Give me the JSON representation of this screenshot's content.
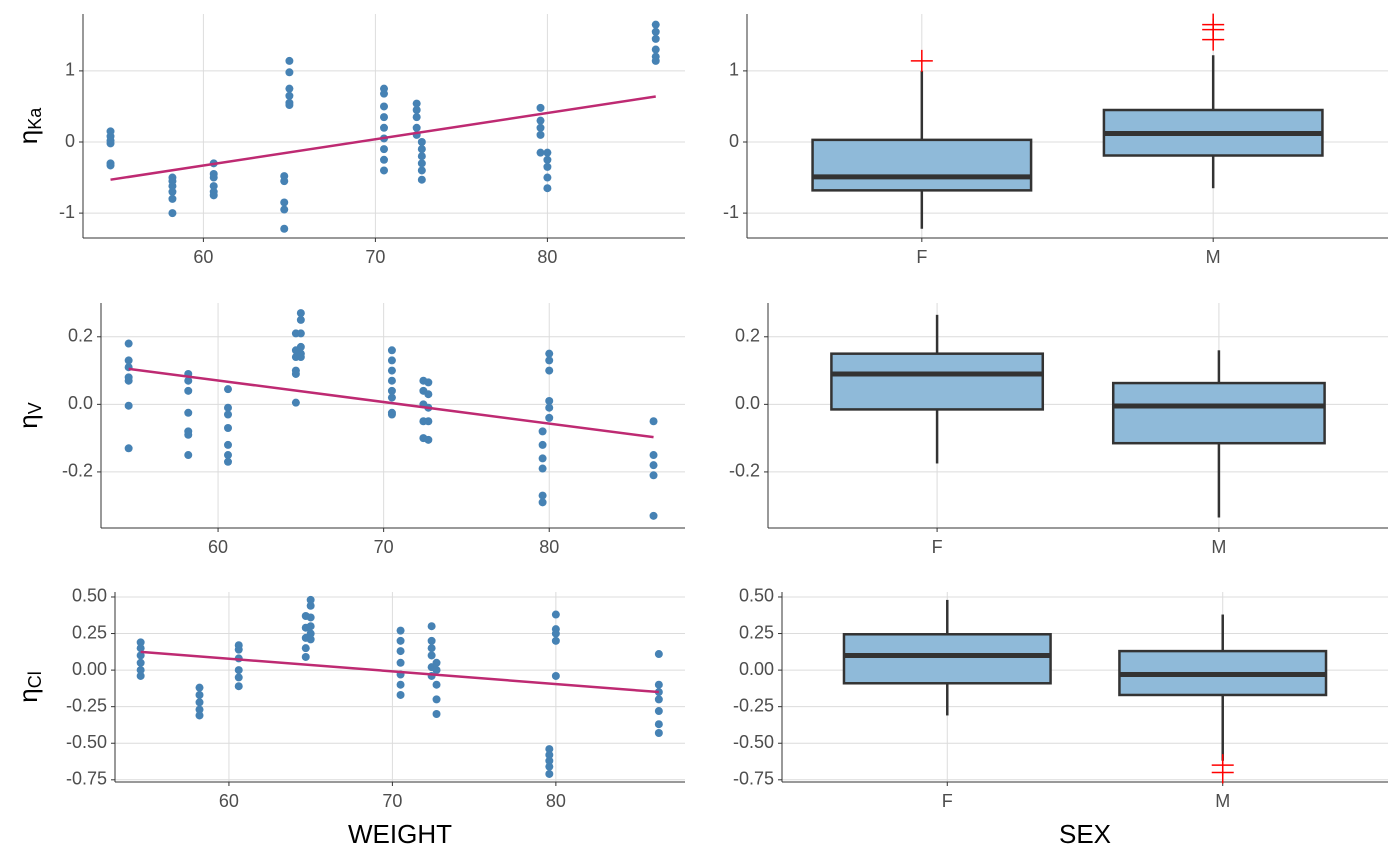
{
  "chart_data": [
    {
      "type": "scatter",
      "ylabel": "η",
      "ylabel_sub": "Ka",
      "color": "#4682b4",
      "xlim": [
        53.0,
        88.0
      ],
      "xticks": [
        60,
        70,
        80
      ],
      "ylim": [
        -1.35,
        1.8
      ],
      "yticks": [
        -1,
        0,
        1
      ],
      "grid": true,
      "groups": [
        {
          "x": 54.6,
          "values": [
            0.15,
            0.08,
            0.02,
            -0.02,
            -0.3,
            -0.33
          ]
        },
        {
          "x": 58.2,
          "values": [
            -0.5,
            -0.55,
            -0.62,
            -0.7,
            -0.8,
            -1.0
          ]
        },
        {
          "x": 60.6,
          "values": [
            -0.3,
            -0.45,
            -0.5,
            -0.62,
            -0.7,
            -0.75
          ]
        },
        {
          "x": 64.7,
          "values": [
            -0.48,
            -0.55,
            -0.85,
            -0.95,
            -1.22
          ]
        },
        {
          "x": 65.0,
          "values": [
            1.14,
            0.98,
            0.75,
            0.65,
            0.55,
            0.52
          ]
        },
        {
          "x": 70.5,
          "values": [
            0.75,
            0.68,
            0.5,
            0.35,
            0.2,
            0.05,
            -0.1,
            -0.25,
            -0.4
          ]
        },
        {
          "x": 72.4,
          "values": [
            0.54,
            0.45,
            0.35,
            0.2,
            0.1
          ]
        },
        {
          "x": 72.7,
          "values": [
            0.0,
            -0.1,
            -0.2,
            -0.3,
            -0.4,
            -0.53
          ]
        },
        {
          "x": 79.6,
          "values": [
            0.48,
            0.3,
            0.2,
            0.1,
            -0.15
          ]
        },
        {
          "x": 80.0,
          "values": [
            -0.15,
            -0.25,
            -0.35,
            -0.5,
            -0.65
          ]
        },
        {
          "x": 86.3,
          "values": [
            1.65,
            1.55,
            1.45,
            1.3,
            1.2,
            1.14
          ]
        }
      ],
      "fit": {
        "x": [
          54.6,
          86.3
        ],
        "values": [
          -0.53,
          0.64
        ],
        "color": "#be2a72"
      }
    },
    {
      "type": "box",
      "color": "#8fbad9",
      "outlier_color": "#ff0000",
      "categories": [
        "F",
        "M"
      ],
      "ylim": [
        -1.35,
        1.8
      ],
      "yticks": [
        -1,
        0,
        1
      ],
      "grid": true,
      "boxes": [
        {
          "low": -1.22,
          "q1": -0.68,
          "median": -0.49,
          "q3": 0.03,
          "high": 1.0,
          "outliers": [
            1.14
          ]
        },
        {
          "low": -0.65,
          "q1": -0.19,
          "median": 0.12,
          "q3": 0.45,
          "high": 1.22,
          "outliers": [
            1.65,
            1.58,
            1.44
          ]
        }
      ]
    },
    {
      "type": "scatter",
      "ylabel": "η",
      "ylabel_sub": "V",
      "color": "#4682b4",
      "xlim": [
        52.93,
        88.2
      ],
      "xticks": [
        60,
        70,
        80
      ],
      "ylim": [
        -0.366,
        0.3
      ],
      "yticks": [
        -0.2,
        {
          "value": 0,
          "label": "0.0"
        },
        0.2
      ],
      "grid": true,
      "groups": [
        {
          "x": 54.6,
          "values": [
            0.18,
            0.13,
            0.11,
            0.08,
            0.07,
            -0.004,
            -0.13
          ]
        },
        {
          "x": 58.2,
          "values": [
            0.09,
            0.07,
            0.04,
            -0.025,
            -0.08,
            -0.09,
            -0.15
          ]
        },
        {
          "x": 60.6,
          "values": [
            0.045,
            -0.01,
            -0.03,
            -0.07,
            -0.12,
            -0.15,
            -0.17
          ]
        },
        {
          "x": 64.7,
          "values": [
            0.21,
            0.16,
            0.14,
            0.1,
            0.09,
            0.005
          ]
        },
        {
          "x": 65.0,
          "values": [
            0.27,
            0.25,
            0.21,
            0.17,
            0.15,
            0.14
          ]
        },
        {
          "x": 70.5,
          "values": [
            0.16,
            0.13,
            0.1,
            0.07,
            0.04,
            0.02,
            -0.025,
            -0.03
          ]
        },
        {
          "x": 72.4,
          "values": [
            0.07,
            0.04,
            0.0,
            -0.05,
            -0.1
          ]
        },
        {
          "x": 72.7,
          "values": [
            0.065,
            0.03,
            -0.01,
            -0.05,
            -0.105
          ]
        },
        {
          "x": 79.6,
          "values": [
            -0.08,
            -0.12,
            -0.16,
            -0.19,
            -0.27,
            -0.29
          ]
        },
        {
          "x": 80.0,
          "values": [
            0.15,
            0.13,
            0.1,
            0.01,
            -0.01,
            -0.04
          ]
        },
        {
          "x": 86.3,
          "values": [
            -0.05,
            -0.15,
            -0.18,
            -0.21,
            -0.33
          ]
        }
      ],
      "fit": {
        "x": [
          54.6,
          86.3
        ],
        "values": [
          0.105,
          -0.097
        ],
        "color": "#be2a72"
      }
    },
    {
      "type": "box",
      "color": "#8fbad9",
      "outlier_color": "#ff0000",
      "categories": [
        "F",
        "M"
      ],
      "ylim": [
        -0.366,
        0.3
      ],
      "yticks": [
        -0.2,
        {
          "value": 0,
          "label": "0.0"
        },
        0.2
      ],
      "grid": true,
      "boxes": [
        {
          "low": -0.175,
          "q1": -0.015,
          "median": 0.09,
          "q3": 0.15,
          "high": 0.265,
          "outliers": []
        },
        {
          "low": -0.335,
          "q1": -0.115,
          "median": -0.005,
          "q3": 0.063,
          "high": 0.16,
          "outliers": []
        }
      ]
    },
    {
      "type": "scatter",
      "ylabel": "η",
      "ylabel_sub": "Cl",
      "xlabel": "WEIGHT",
      "color": "#4682b4",
      "xlim": [
        53.03,
        87.9
      ],
      "xticks": [
        60,
        70,
        80
      ],
      "ylim": [
        -0.765,
        0.534
      ],
      "yticks": [
        -0.75,
        {
          "value": -0.5,
          "label": "-0.50"
        },
        -0.25,
        {
          "value": 0,
          "label": "0.00"
        },
        0.25,
        {
          "value": 0.5,
          "label": "0.50"
        }
      ],
      "grid": true,
      "groups": [
        {
          "x": 54.6,
          "values": [
            0.19,
            0.15,
            0.1,
            0.05,
            0.0,
            -0.04
          ]
        },
        {
          "x": 58.2,
          "values": [
            -0.12,
            -0.17,
            -0.22,
            -0.27,
            -0.31
          ]
        },
        {
          "x": 60.6,
          "values": [
            0.17,
            0.14,
            0.08,
            0.0,
            -0.05,
            -0.11
          ]
        },
        {
          "x": 64.7,
          "values": [
            0.37,
            0.29,
            0.22,
            0.15,
            0.09
          ]
        },
        {
          "x": 65.0,
          "values": [
            0.48,
            0.44,
            0.36,
            0.3,
            0.25,
            0.21
          ]
        },
        {
          "x": 70.5,
          "values": [
            0.27,
            0.2,
            0.13,
            0.05,
            -0.03,
            -0.1,
            -0.17
          ]
        },
        {
          "x": 72.4,
          "values": [
            0.3,
            0.2,
            0.15,
            0.1,
            0.02,
            -0.04
          ]
        },
        {
          "x": 72.7,
          "values": [
            0.05,
            0.0,
            -0.1,
            -0.2,
            -0.3
          ]
        },
        {
          "x": 79.6,
          "values": [
            -0.54,
            -0.58,
            -0.62,
            -0.66,
            -0.71
          ]
        },
        {
          "x": 80.0,
          "values": [
            0.38,
            0.28,
            0.25,
            0.2,
            -0.04
          ]
        },
        {
          "x": 86.3,
          "values": [
            0.11,
            -0.1,
            -0.15,
            -0.2,
            -0.28,
            -0.37,
            -0.43
          ]
        }
      ],
      "fit": {
        "x": [
          54.6,
          86.3
        ],
        "values": [
          0.125,
          -0.15
        ],
        "color": "#be2a72"
      }
    },
    {
      "type": "box",
      "xlabel": "SEX",
      "color": "#8fbad9",
      "outlier_color": "#ff0000",
      "categories": [
        "F",
        "M"
      ],
      "ylim": [
        -0.765,
        0.534
      ],
      "yticks": [
        -0.75,
        {
          "value": -0.5,
          "label": "-0.50"
        },
        -0.25,
        {
          "value": 0,
          "label": "0.00"
        },
        0.25,
        {
          "value": 0.5,
          "label": "0.50"
        }
      ],
      "grid": true,
      "boxes": [
        {
          "low": -0.31,
          "q1": -0.09,
          "median": 0.1,
          "q3": 0.245,
          "high": 0.48,
          "outliers": []
        },
        {
          "low": -0.62,
          "q1": -0.17,
          "median": -0.03,
          "q3": 0.13,
          "high": 0.38,
          "outliers": [
            -0.65,
            -0.7
          ]
        }
      ]
    }
  ]
}
